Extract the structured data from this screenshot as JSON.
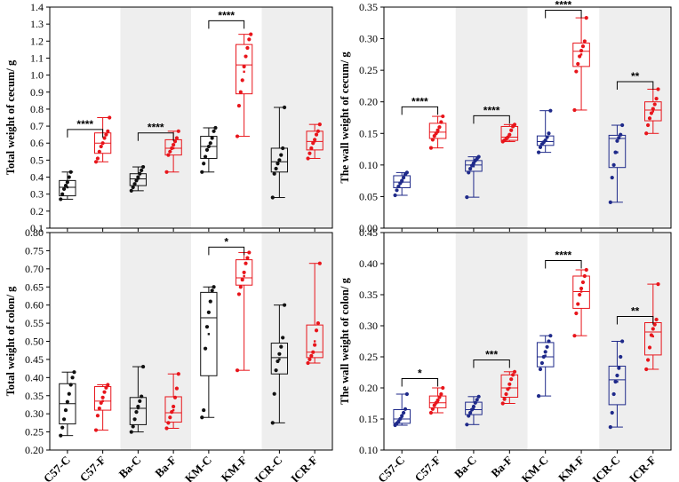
{
  "colors": {
    "black": "#111111",
    "red": "#e8151b",
    "blue": "#1f2a8a",
    "shade": "#eeeeee"
  },
  "chart_data": [
    {
      "type": "box",
      "ylabel": "Total weight of cecum/ g",
      "ylim": [
        0.1,
        1.4
      ],
      "yticks": [
        "0.1",
        "0.2",
        "0.3",
        "0.4",
        "0.5",
        "0.6",
        "0.7",
        "0.8",
        "0.9",
        "1.0",
        "1.1",
        "1.2",
        "1.3",
        "1.4"
      ],
      "categories": [
        "C57-C",
        "C57-F",
        "Ba-C",
        "Ba-F",
        "KM-C",
        "KM-F",
        "ICR-C",
        "ICR-F"
      ],
      "colors": [
        "black",
        "red",
        "black",
        "red",
        "black",
        "red",
        "black",
        "red"
      ],
      "boxes": [
        {
          "q1": 0.29,
          "median": 0.34,
          "q3": 0.38,
          "mean": 0.34,
          "whisker": [
            0.27,
            0.43
          ],
          "points": [
            0.27,
            0.3,
            0.33,
            0.35,
            0.37,
            0.4,
            0.43
          ]
        },
        {
          "q1": 0.54,
          "median": 0.6,
          "q3": 0.66,
          "mean": 0.6,
          "whisker": [
            0.49,
            0.75
          ],
          "points": [
            0.49,
            0.51,
            0.55,
            0.58,
            0.6,
            0.63,
            0.65,
            0.67,
            0.75
          ]
        },
        {
          "q1": 0.35,
          "median": 0.39,
          "q3": 0.42,
          "mean": 0.39,
          "whisker": [
            0.32,
            0.46
          ],
          "points": [
            0.32,
            0.34,
            0.36,
            0.38,
            0.4,
            0.42,
            0.44,
            0.46
          ]
        },
        {
          "q1": 0.53,
          "median": 0.57,
          "q3": 0.62,
          "mean": 0.57,
          "whisker": [
            0.43,
            0.67
          ],
          "points": [
            0.43,
            0.53,
            0.55,
            0.57,
            0.59,
            0.61,
            0.63,
            0.67
          ]
        },
        {
          "q1": 0.51,
          "median": 0.58,
          "q3": 0.64,
          "mean": 0.58,
          "whisker": [
            0.43,
            0.69
          ],
          "points": [
            0.43,
            0.48,
            0.52,
            0.56,
            0.58,
            0.6,
            0.63,
            0.67,
            0.69
          ]
        },
        {
          "q1": 0.89,
          "median": 1.06,
          "q3": 1.18,
          "mean": 1.02,
          "whisker": [
            0.64,
            1.24
          ],
          "points": [
            0.64,
            0.82,
            0.9,
            0.97,
            1.05,
            1.11,
            1.16,
            1.21,
            1.24
          ]
        },
        {
          "q1": 0.43,
          "median": 0.49,
          "q3": 0.57,
          "mean": 0.5,
          "whisker": [
            0.28,
            0.81
          ],
          "points": [
            0.28,
            0.42,
            0.45,
            0.48,
            0.5,
            0.53,
            0.57,
            0.81
          ]
        },
        {
          "q1": 0.56,
          "median": 0.61,
          "q3": 0.67,
          "mean": 0.61,
          "whisker": [
            0.51,
            0.71
          ],
          "points": [
            0.51,
            0.54,
            0.57,
            0.6,
            0.62,
            0.65,
            0.67,
            0.71
          ]
        }
      ],
      "significance": [
        {
          "from": 0,
          "to": 1,
          "label": "****",
          "y": 0.68
        },
        {
          "from": 2,
          "to": 3,
          "label": "****",
          "y": 0.66
        },
        {
          "from": 4,
          "to": 5,
          "label": "****",
          "y": 1.32
        }
      ]
    },
    {
      "type": "box",
      "ylabel": "The wall weight of cecum/ g",
      "ylim": [
        0.0,
        0.35
      ],
      "yticks": [
        "0.00",
        "0.05",
        "0.10",
        "0.15",
        "0.20",
        "0.25",
        "0.30",
        "0.35"
      ],
      "categories": [
        "C57-C",
        "C57-F",
        "Ba-C",
        "Ba-F",
        "KM-C",
        "KM-F",
        "ICR-C",
        "ICR-F"
      ],
      "colors": [
        "blue",
        "red",
        "blue",
        "red",
        "blue",
        "red",
        "blue",
        "red"
      ],
      "boxes": [
        {
          "q1": 0.064,
          "median": 0.073,
          "q3": 0.083,
          "mean": 0.073,
          "whisker": [
            0.052,
            0.088
          ],
          "points": [
            0.052,
            0.06,
            0.066,
            0.071,
            0.075,
            0.08,
            0.085,
            0.088
          ]
        },
        {
          "q1": 0.142,
          "median": 0.152,
          "q3": 0.166,
          "mean": 0.152,
          "whisker": [
            0.127,
            0.177
          ],
          "points": [
            0.127,
            0.14,
            0.146,
            0.15,
            0.155,
            0.16,
            0.168,
            0.177
          ]
        },
        {
          "q1": 0.09,
          "median": 0.1,
          "q3": 0.107,
          "mean": 0.098,
          "whisker": [
            0.049,
            0.113
          ],
          "points": [
            0.049,
            0.088,
            0.094,
            0.099,
            0.103,
            0.107,
            0.11,
            0.113
          ]
        },
        {
          "q1": 0.139,
          "median": 0.144,
          "q3": 0.161,
          "mean": 0.148,
          "whisker": [
            0.137,
            0.164
          ],
          "points": [
            0.137,
            0.139,
            0.141,
            0.144,
            0.148,
            0.155,
            0.161,
            0.164
          ]
        },
        {
          "q1": 0.131,
          "median": 0.137,
          "q3": 0.146,
          "mean": 0.138,
          "whisker": [
            0.12,
            0.186
          ],
          "points": [
            0.12,
            0.128,
            0.133,
            0.136,
            0.139,
            0.144,
            0.15,
            0.186
          ]
        },
        {
          "q1": 0.256,
          "median": 0.28,
          "q3": 0.293,
          "mean": 0.275,
          "whisker": [
            0.187,
            0.333
          ],
          "points": [
            0.187,
            0.248,
            0.26,
            0.272,
            0.281,
            0.288,
            0.296,
            0.333
          ]
        },
        {
          "q1": 0.096,
          "median": 0.142,
          "q3": 0.147,
          "mean": 0.12,
          "whisker": [
            0.041,
            0.163
          ],
          "points": [
            0.041,
            0.08,
            0.1,
            0.12,
            0.138,
            0.143,
            0.148,
            0.163
          ]
        },
        {
          "q1": 0.17,
          "median": 0.187,
          "q3": 0.2,
          "mean": 0.185,
          "whisker": [
            0.15,
            0.22
          ],
          "points": [
            0.15,
            0.163,
            0.174,
            0.182,
            0.189,
            0.196,
            0.205,
            0.22
          ]
        }
      ],
      "significance": [
        {
          "from": 0,
          "to": 1,
          "label": "****",
          "y": 0.192
        },
        {
          "from": 2,
          "to": 3,
          "label": "****",
          "y": 0.178
        },
        {
          "from": 4,
          "to": 5,
          "label": "****",
          "y": 0.345
        },
        {
          "from": 6,
          "to": 7,
          "label": "**",
          "y": 0.232
        }
      ]
    },
    {
      "type": "box",
      "ylabel": "Total weight of colon/ g",
      "ylim": [
        0.2,
        0.8
      ],
      "yticks": [
        "0.20",
        "0.25",
        "0.30",
        "0.35",
        "0.40",
        "0.45",
        "0.50",
        "0.55",
        "0.60",
        "0.65",
        "0.70",
        "0.75",
        "0.80"
      ],
      "categories": [
        "C57-C",
        "C57-F",
        "Ba-C",
        "Ba-F",
        "KM-C",
        "KM-F",
        "ICR-C",
        "ICR-F"
      ],
      "colors": [
        "black",
        "red",
        "black",
        "red",
        "black",
        "red",
        "black",
        "red"
      ],
      "boxes": [
        {
          "q1": 0.272,
          "median": 0.328,
          "q3": 0.383,
          "mean": 0.33,
          "whisker": [
            0.24,
            0.415
          ],
          "points": [
            0.24,
            0.262,
            0.285,
            0.31,
            0.333,
            0.355,
            0.38,
            0.4,
            0.415
          ]
        },
        {
          "q1": 0.31,
          "median": 0.335,
          "q3": 0.375,
          "mean": 0.335,
          "whisker": [
            0.255,
            0.38
          ],
          "points": [
            0.255,
            0.295,
            0.315,
            0.33,
            0.345,
            0.36,
            0.372,
            0.38
          ]
        },
        {
          "q1": 0.27,
          "median": 0.315,
          "q3": 0.345,
          "mean": 0.315,
          "whisker": [
            0.25,
            0.43
          ],
          "points": [
            0.25,
            0.265,
            0.285,
            0.305,
            0.32,
            0.335,
            0.348,
            0.43
          ]
        },
        {
          "q1": 0.277,
          "median": 0.303,
          "q3": 0.347,
          "mean": 0.31,
          "whisker": [
            0.26,
            0.41
          ],
          "points": [
            0.26,
            0.275,
            0.29,
            0.305,
            0.32,
            0.345,
            0.37,
            0.41
          ]
        },
        {
          "q1": 0.405,
          "median": 0.565,
          "q3": 0.635,
          "mean": 0.52,
          "whisker": [
            0.29,
            0.65
          ],
          "points": [
            0.29,
            0.31,
            0.48,
            0.54,
            0.58,
            0.61,
            0.64,
            0.65
          ]
        },
        {
          "q1": 0.655,
          "median": 0.675,
          "q3": 0.725,
          "mean": 0.68,
          "whisker": [
            0.42,
            0.745
          ],
          "points": [
            0.42,
            0.63,
            0.65,
            0.67,
            0.69,
            0.715,
            0.73,
            0.745
          ]
        },
        {
          "q1": 0.41,
          "median": 0.455,
          "q3": 0.495,
          "mean": 0.45,
          "whisker": [
            0.275,
            0.6
          ],
          "points": [
            0.275,
            0.355,
            0.42,
            0.445,
            0.465,
            0.485,
            0.51,
            0.6
          ]
        },
        {
          "q1": 0.455,
          "median": 0.47,
          "q3": 0.545,
          "mean": 0.5,
          "whisker": [
            0.44,
            0.715
          ],
          "points": [
            0.44,
            0.45,
            0.46,
            0.47,
            0.49,
            0.53,
            0.55,
            0.715
          ]
        }
      ],
      "significance": [
        {
          "from": 4,
          "to": 5,
          "label": "*",
          "y": 0.76
        }
      ]
    },
    {
      "type": "box",
      "ylabel": "The wall weight of colon/ g",
      "ylim": [
        0.1,
        0.45
      ],
      "yticks": [
        "0.10",
        "0.15",
        "0.20",
        "0.25",
        "0.30",
        "0.35",
        "0.40",
        "0.45"
      ],
      "categories": [
        "C57-C",
        "C57-F",
        "Ba-C",
        "Ba-F",
        "KM-C",
        "KM-F",
        "ICR-C",
        "ICR-F"
      ],
      "colors": [
        "blue",
        "red",
        "blue",
        "red",
        "blue",
        "red",
        "blue",
        "red"
      ],
      "boxes": [
        {
          "q1": 0.143,
          "median": 0.15,
          "q3": 0.165,
          "mean": 0.153,
          "whisker": [
            0.14,
            0.19
          ],
          "points": [
            0.14,
            0.143,
            0.146,
            0.15,
            0.155,
            0.16,
            0.166,
            0.19
          ]
        },
        {
          "q1": 0.168,
          "median": 0.176,
          "q3": 0.187,
          "mean": 0.177,
          "whisker": [
            0.16,
            0.2
          ],
          "points": [
            0.16,
            0.166,
            0.172,
            0.176,
            0.18,
            0.185,
            0.19,
            0.2
          ]
        },
        {
          "q1": 0.157,
          "median": 0.165,
          "q3": 0.177,
          "mean": 0.166,
          "whisker": [
            0.141,
            0.186
          ],
          "points": [
            0.141,
            0.155,
            0.16,
            0.165,
            0.17,
            0.176,
            0.181,
            0.186
          ]
        },
        {
          "q1": 0.185,
          "median": 0.2,
          "q3": 0.221,
          "mean": 0.2,
          "whisker": [
            0.175,
            0.226
          ],
          "points": [
            0.175,
            0.182,
            0.19,
            0.198,
            0.206,
            0.214,
            0.221,
            0.226
          ]
        },
        {
          "q1": 0.234,
          "median": 0.25,
          "q3": 0.273,
          "mean": 0.252,
          "whisker": [
            0.187,
            0.284
          ],
          "points": [
            0.187,
            0.23,
            0.24,
            0.25,
            0.258,
            0.266,
            0.275,
            0.284
          ]
        },
        {
          "q1": 0.328,
          "median": 0.355,
          "q3": 0.38,
          "mean": 0.355,
          "whisker": [
            0.284,
            0.39
          ],
          "points": [
            0.284,
            0.32,
            0.335,
            0.35,
            0.36,
            0.37,
            0.38,
            0.39
          ]
        },
        {
          "q1": 0.173,
          "median": 0.213,
          "q3": 0.235,
          "mean": 0.21,
          "whisker": [
            0.137,
            0.275
          ],
          "points": [
            0.137,
            0.16,
            0.19,
            0.21,
            0.22,
            0.232,
            0.25,
            0.275
          ]
        },
        {
          "q1": 0.253,
          "median": 0.29,
          "q3": 0.305,
          "mean": 0.283,
          "whisker": [
            0.23,
            0.367
          ],
          "points": [
            0.23,
            0.245,
            0.265,
            0.285,
            0.295,
            0.302,
            0.31,
            0.367
          ]
        }
      ],
      "significance": [
        {
          "from": 0,
          "to": 1,
          "label": "*",
          "y": 0.215
        },
        {
          "from": 2,
          "to": 3,
          "label": "***",
          "y": 0.245
        },
        {
          "from": 4,
          "to": 5,
          "label": "****",
          "y": 0.405
        },
        {
          "from": 6,
          "to": 7,
          "label": "**",
          "y": 0.315
        }
      ]
    }
  ]
}
